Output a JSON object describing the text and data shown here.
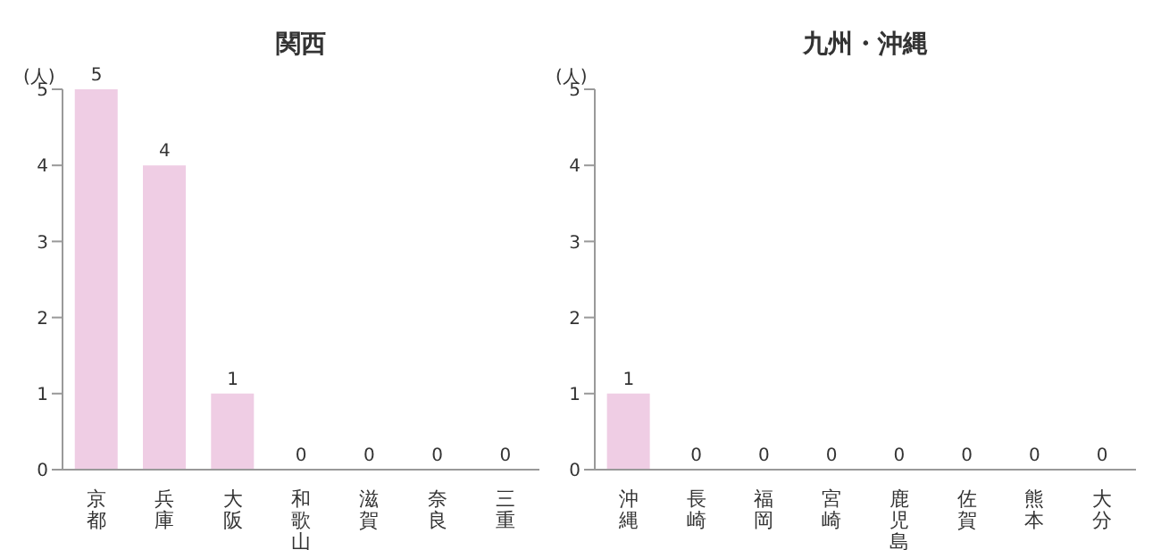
{
  "chart_data": [
    {
      "type": "bar",
      "title": "関西",
      "ylabel": "(人)",
      "categories": [
        "京都",
        "兵庫",
        "大阪",
        "和歌山",
        "滋賀",
        "奈良",
        "三重"
      ],
      "values": [
        5,
        4,
        1,
        0,
        0,
        0,
        0
      ],
      "color": "#efcde4",
      "ylim": [
        0,
        5
      ],
      "yticks": [
        0,
        1,
        2,
        3,
        4,
        5
      ],
      "data_labels": true
    },
    {
      "type": "bar",
      "title": "九州・沖縄",
      "ylabel": "(人)",
      "categories": [
        "沖縄",
        "長崎",
        "福岡",
        "宮崎",
        "鹿児島",
        "佐賀",
        "熊本",
        "大分"
      ],
      "values": [
        1,
        0,
        0,
        0,
        0,
        0,
        0,
        0
      ],
      "color": "#efcde4",
      "ylim": [
        0,
        5
      ],
      "yticks": [
        0,
        1,
        2,
        3,
        4,
        5
      ],
      "data_labels": true
    }
  ]
}
